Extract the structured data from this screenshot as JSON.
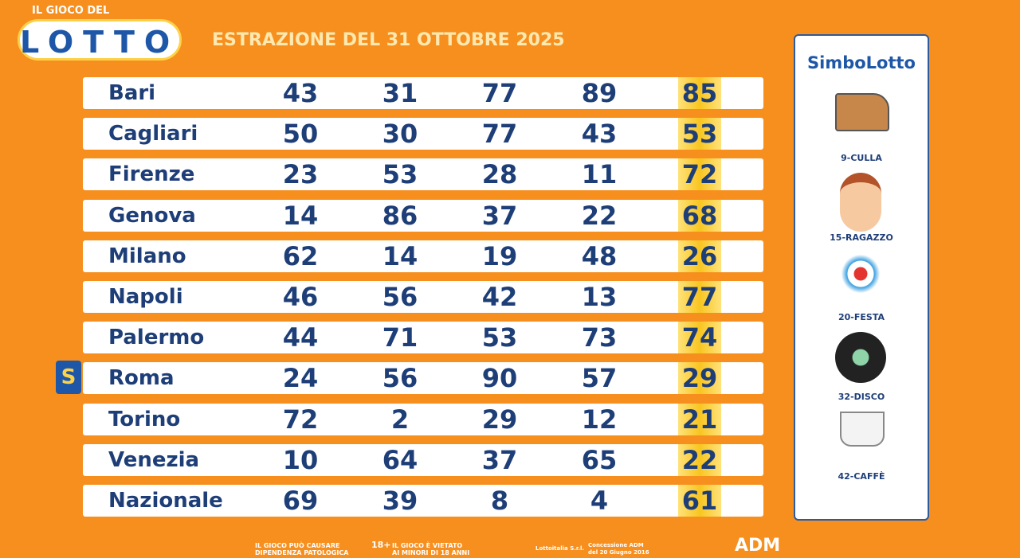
{
  "header": {
    "logo_top": "IL GIOCO DEL",
    "logo": "LOTTO",
    "title": "ESTRAZIONE DEL 31 OTTOBRE 2025"
  },
  "table": {
    "rows": [
      [
        "Bari",
        43,
        31,
        77,
        89,
        85
      ],
      [
        "Cagliari",
        50,
        30,
        77,
        43,
        53
      ],
      [
        "Firenze",
        23,
        53,
        28,
        11,
        72
      ],
      [
        "Genova",
        14,
        86,
        37,
        22,
        68
      ],
      [
        "Milano",
        62,
        14,
        19,
        48,
        26
      ],
      [
        "Napoli",
        46,
        56,
        42,
        13,
        77
      ],
      [
        "Palermo",
        44,
        71,
        53,
        73,
        74
      ],
      [
        "Roma",
        24,
        56,
        90,
        57,
        29
      ],
      [
        "Torino",
        72,
        2,
        29,
        12,
        21
      ],
      [
        "Venezia",
        10,
        64,
        37,
        65,
        22
      ],
      [
        "Nazionale",
        69,
        39,
        8,
        4,
        61
      ]
    ],
    "marker": {
      "row": 7,
      "label": "S"
    }
  },
  "simbolotto": {
    "title": "SimboLotto",
    "symbols": [
      "9-CULLA",
      "15-RAGAZZO",
      "20-FESTA",
      "32-DISCO",
      "42-CAFFÈ"
    ]
  },
  "footer": {
    "warning": "IL GIOCO PUÒ CAUSARE DIPENDENZA PATOLOGICA",
    "age": "18+",
    "minors": "IL GIOCO È VIETATO AI MINORI DI 18 ANNI",
    "company": "Lottoitalia S.r.l.",
    "concession": "Concessione ADM del 20 Giugno 2016",
    "adm": "ADM"
  }
}
